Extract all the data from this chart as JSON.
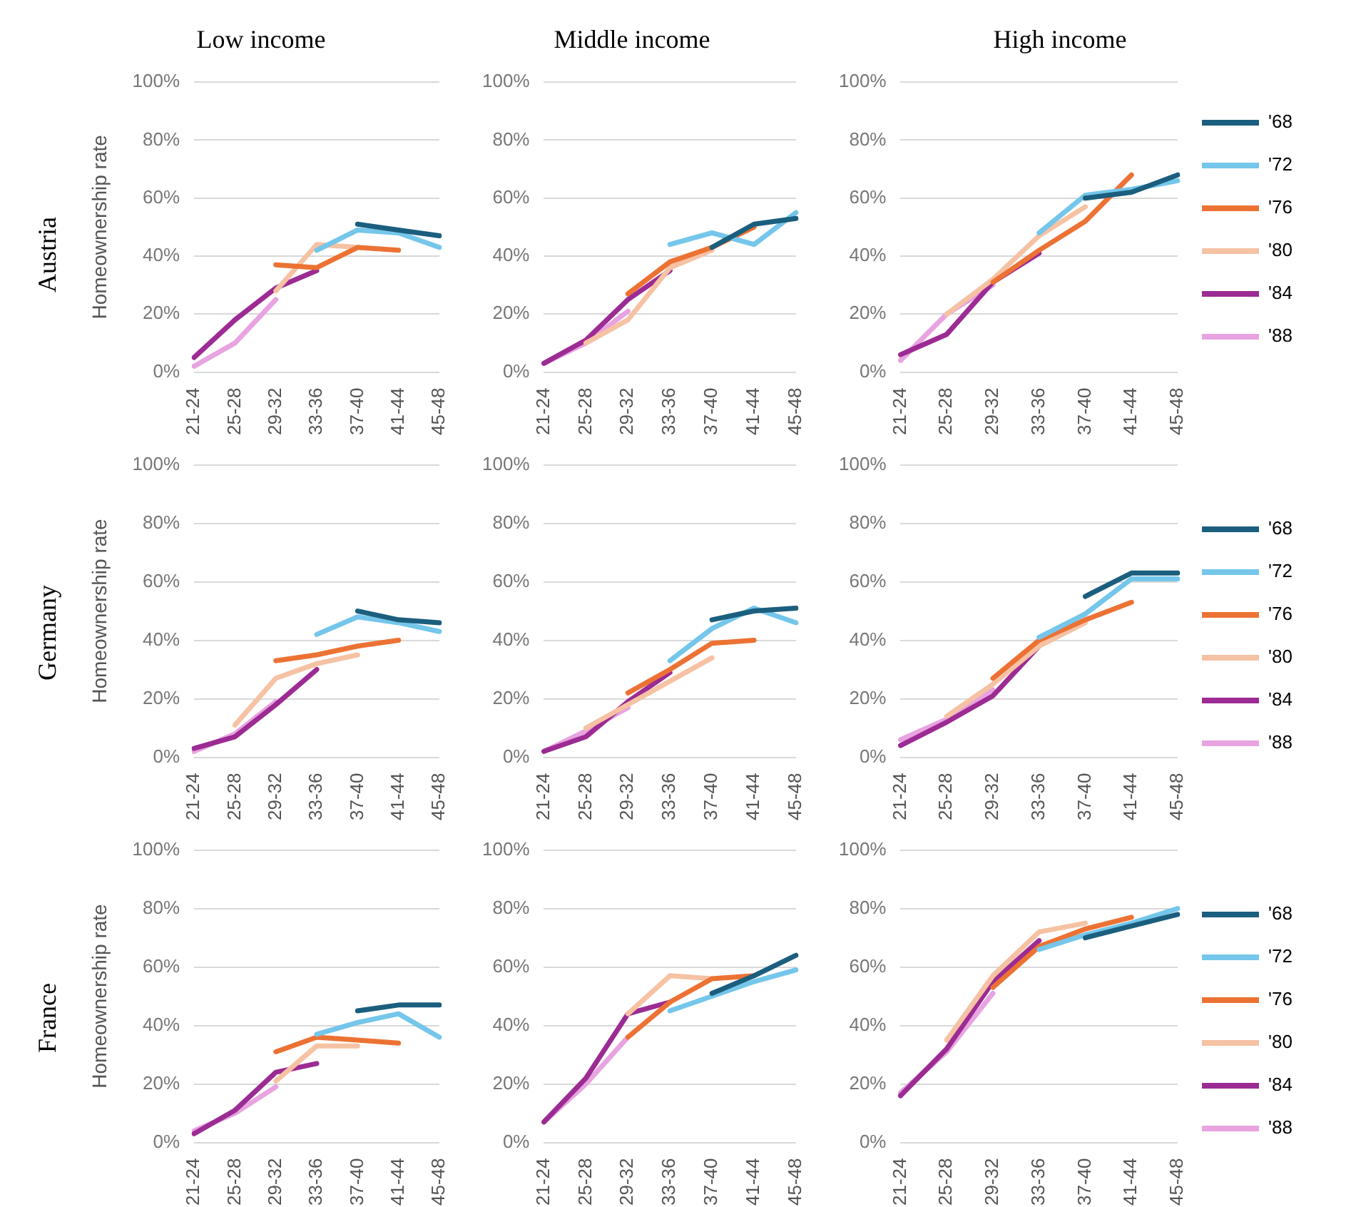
{
  "chart_data": [
    {
      "type": "line",
      "title": "Low income",
      "ylabel": "Homeownership rate",
      "annotations": [
        "Austria"
      ],
      "categories": [
        "21-24",
        "25-28",
        "29-32",
        "33-36",
        "37-40",
        "41-44",
        "45-48"
      ],
      "ylim": [
        0,
        100
      ],
      "yticks": [
        {
          "value": 0,
          "label": "0%"
        },
        {
          "value": 20,
          "label": "20%"
        },
        {
          "value": 40,
          "label": "40%"
        },
        {
          "value": 60,
          "label": "60%"
        },
        {
          "value": 80,
          "label": "80%"
        },
        {
          "value": 100,
          "label": "100%"
        }
      ],
      "grid": "y",
      "legend": false,
      "marker": "none",
      "line_style": "solid",
      "series": [
        {
          "color": "#1b5e7e",
          "values": [
            null,
            null,
            null,
            null,
            51,
            49,
            47
          ]
        },
        {
          "color": "#74c6ea",
          "values": [
            null,
            null,
            null,
            42,
            49,
            48,
            43
          ]
        },
        {
          "color": "#ec7234",
          "values": [
            null,
            null,
            37,
            36,
            43,
            42,
            null
          ]
        },
        {
          "color": "#f6c2a4",
          "values": [
            null,
            null,
            28,
            44,
            43,
            null,
            null
          ]
        },
        {
          "color": "#9c2b93",
          "values": [
            5,
            18,
            29,
            35,
            null,
            null,
            null
          ]
        },
        {
          "color": "#e8a3e0",
          "values": [
            2,
            10,
            25,
            null,
            null,
            null,
            null
          ]
        }
      ]
    },
    {
      "type": "line",
      "title": "Middle income",
      "categories": [
        "21-24",
        "25-28",
        "29-32",
        "33-36",
        "37-40",
        "41-44",
        "45-48"
      ],
      "ylim": [
        0,
        100
      ],
      "yticks": [
        {
          "value": 0,
          "label": "0%"
        },
        {
          "value": 20,
          "label": "20%"
        },
        {
          "value": 40,
          "label": "40%"
        },
        {
          "value": 60,
          "label": "60%"
        },
        {
          "value": 80,
          "label": "80%"
        },
        {
          "value": 100,
          "label": "100%"
        }
      ],
      "grid": "y",
      "legend": false,
      "marker": "none",
      "line_style": "solid",
      "series": [
        {
          "color": "#1b5e7e",
          "values": [
            null,
            null,
            null,
            null,
            43,
            51,
            53
          ]
        },
        {
          "color": "#74c6ea",
          "values": [
            null,
            null,
            null,
            44,
            48,
            44,
            55
          ]
        },
        {
          "color": "#ec7234",
          "values": [
            null,
            null,
            27,
            38,
            43,
            50,
            null
          ]
        },
        {
          "color": "#f6c2a4",
          "values": [
            null,
            10,
            18,
            36,
            42,
            null,
            null
          ]
        },
        {
          "color": "#9c2b93",
          "values": [
            3,
            11,
            25,
            35,
            null,
            null,
            null
          ]
        },
        {
          "color": "#e8a3e0",
          "values": [
            3,
            10,
            21,
            null,
            null,
            null,
            null
          ]
        }
      ]
    },
    {
      "type": "line",
      "title": "High income",
      "categories": [
        "21-24",
        "25-28",
        "29-32",
        "33-36",
        "37-40",
        "41-44",
        "45-48"
      ],
      "ylim": [
        0,
        100
      ],
      "yticks": [
        {
          "value": 0,
          "label": "0%"
        },
        {
          "value": 20,
          "label": "20%"
        },
        {
          "value": 40,
          "label": "40%"
        },
        {
          "value": 60,
          "label": "60%"
        },
        {
          "value": 80,
          "label": "80%"
        },
        {
          "value": 100,
          "label": "100%"
        }
      ],
      "grid": "y",
      "legend": "right",
      "marker": "none",
      "line_style": "solid",
      "series": [
        {
          "name": "'68",
          "color": "#1b5e7e",
          "values": [
            null,
            null,
            null,
            null,
            60,
            62,
            68
          ]
        },
        {
          "name": "'72",
          "color": "#74c6ea",
          "values": [
            null,
            null,
            null,
            48,
            61,
            63,
            66
          ]
        },
        {
          "name": "'76",
          "color": "#ec7234",
          "values": [
            null,
            null,
            31,
            42,
            52,
            68,
            null
          ]
        },
        {
          "name": "'80",
          "color": "#f6c2a4",
          "values": [
            null,
            20,
            32,
            47,
            57,
            null,
            null
          ]
        },
        {
          "name": "'84",
          "color": "#9c2b93",
          "values": [
            6,
            13,
            31,
            41,
            null,
            null,
            null
          ]
        },
        {
          "name": "'88",
          "color": "#e8a3e0",
          "values": [
            4,
            20,
            30,
            null,
            null,
            null,
            null
          ]
        }
      ]
    },
    {
      "type": "line",
      "ylabel": "Homeownership rate",
      "annotations": [
        "Germany"
      ],
      "categories": [
        "21-24",
        "25-28",
        "29-32",
        "33-36",
        "37-40",
        "41-44",
        "45-48"
      ],
      "ylim": [
        0,
        100
      ],
      "yticks": [
        {
          "value": 0,
          "label": "0%"
        },
        {
          "value": 20,
          "label": "20%"
        },
        {
          "value": 40,
          "label": "40%"
        },
        {
          "value": 60,
          "label": "60%"
        },
        {
          "value": 80,
          "label": "80%"
        },
        {
          "value": 100,
          "label": "100%"
        }
      ],
      "grid": "y",
      "legend": false,
      "marker": "none",
      "line_style": "solid",
      "series": [
        {
          "color": "#1b5e7e",
          "values": [
            null,
            null,
            null,
            null,
            50,
            47,
            46
          ]
        },
        {
          "color": "#74c6ea",
          "values": [
            null,
            null,
            null,
            42,
            48,
            46,
            43
          ]
        },
        {
          "color": "#ec7234",
          "values": [
            null,
            null,
            33,
            35,
            38,
            40,
            null
          ]
        },
        {
          "color": "#f6c2a4",
          "values": [
            null,
            11,
            27,
            32,
            35,
            null,
            null
          ]
        },
        {
          "color": "#9c2b93",
          "values": [
            3,
            7,
            18,
            30,
            null,
            null,
            null
          ]
        },
        {
          "color": "#e8a3e0",
          "values": [
            2,
            8,
            19,
            null,
            null,
            null,
            null
          ]
        }
      ]
    },
    {
      "type": "line",
      "categories": [
        "21-24",
        "25-28",
        "29-32",
        "33-36",
        "37-40",
        "41-44",
        "45-48"
      ],
      "ylim": [
        0,
        100
      ],
      "yticks": [
        {
          "value": 0,
          "label": "0%"
        },
        {
          "value": 20,
          "label": "20%"
        },
        {
          "value": 40,
          "label": "40%"
        },
        {
          "value": 60,
          "label": "60%"
        },
        {
          "value": 80,
          "label": "80%"
        },
        {
          "value": 100,
          "label": "100%"
        }
      ],
      "grid": "y",
      "legend": false,
      "marker": "none",
      "line_style": "solid",
      "series": [
        {
          "color": "#1b5e7e",
          "values": [
            null,
            null,
            null,
            null,
            47,
            50,
            51
          ]
        },
        {
          "color": "#74c6ea",
          "values": [
            null,
            null,
            null,
            33,
            44,
            51,
            46
          ]
        },
        {
          "color": "#ec7234",
          "values": [
            null,
            null,
            22,
            30,
            39,
            40,
            null
          ]
        },
        {
          "color": "#f6c2a4",
          "values": [
            null,
            10,
            18,
            26,
            34,
            null,
            null
          ]
        },
        {
          "color": "#9c2b93",
          "values": [
            2,
            7,
            19,
            29,
            null,
            null,
            null
          ]
        },
        {
          "color": "#e8a3e0",
          "values": [
            2,
            9,
            17,
            null,
            null,
            null,
            null
          ]
        }
      ]
    },
    {
      "type": "line",
      "categories": [
        "21-24",
        "25-28",
        "29-32",
        "33-36",
        "37-40",
        "41-44",
        "45-48"
      ],
      "ylim": [
        0,
        100
      ],
      "yticks": [
        {
          "value": 0,
          "label": "0%"
        },
        {
          "value": 20,
          "label": "20%"
        },
        {
          "value": 40,
          "label": "40%"
        },
        {
          "value": 60,
          "label": "60%"
        },
        {
          "value": 80,
          "label": "80%"
        },
        {
          "value": 100,
          "label": "100%"
        }
      ],
      "grid": "y",
      "legend": "right",
      "marker": "none",
      "line_style": "solid",
      "series": [
        {
          "name": "'68",
          "color": "#1b5e7e",
          "values": [
            null,
            null,
            null,
            null,
            55,
            63,
            63
          ]
        },
        {
          "name": "'72",
          "color": "#74c6ea",
          "values": [
            null,
            null,
            null,
            41,
            49,
            61,
            61
          ]
        },
        {
          "name": "'76",
          "color": "#ec7234",
          "values": [
            null,
            null,
            27,
            40,
            47,
            53,
            null
          ]
        },
        {
          "name": "'80",
          "color": "#f6c2a4",
          "values": [
            null,
            14,
            25,
            38,
            46,
            null,
            null
          ]
        },
        {
          "name": "'84",
          "color": "#9c2b93",
          "values": [
            4,
            12,
            21,
            38,
            null,
            null,
            null
          ]
        },
        {
          "name": "'88",
          "color": "#e8a3e0",
          "values": [
            6,
            13,
            23,
            null,
            null,
            null,
            null
          ]
        }
      ]
    },
    {
      "type": "line",
      "ylabel": "Homeownership rate",
      "annotations": [
        "France"
      ],
      "categories": [
        "21-24",
        "25-28",
        "29-32",
        "33-36",
        "37-40",
        "41-44",
        "45-48"
      ],
      "ylim": [
        0,
        100
      ],
      "yticks": [
        {
          "value": 0,
          "label": "0%"
        },
        {
          "value": 20,
          "label": "20%"
        },
        {
          "value": 40,
          "label": "40%"
        },
        {
          "value": 60,
          "label": "60%"
        },
        {
          "value": 80,
          "label": "80%"
        },
        {
          "value": 100,
          "label": "100%"
        }
      ],
      "grid": "y",
      "legend": false,
      "marker": "none",
      "line_style": "solid",
      "series": [
        {
          "color": "#1b5e7e",
          "values": [
            null,
            null,
            null,
            null,
            45,
            47,
            47
          ]
        },
        {
          "color": "#74c6ea",
          "values": [
            null,
            null,
            null,
            37,
            41,
            44,
            36
          ]
        },
        {
          "color": "#ec7234",
          "values": [
            null,
            null,
            31,
            36,
            35,
            34,
            null
          ]
        },
        {
          "color": "#f6c2a4",
          "values": [
            null,
            null,
            21,
            33,
            33,
            null,
            null
          ]
        },
        {
          "color": "#9c2b93",
          "values": [
            3,
            11,
            24,
            27,
            null,
            null,
            null
          ]
        },
        {
          "color": "#e8a3e0",
          "values": [
            4,
            10,
            19,
            null,
            null,
            null,
            null
          ]
        }
      ]
    },
    {
      "type": "line",
      "categories": [
        "21-24",
        "25-28",
        "29-32",
        "33-36",
        "37-40",
        "41-44",
        "45-48"
      ],
      "ylim": [
        0,
        100
      ],
      "yticks": [
        {
          "value": 0,
          "label": "0%"
        },
        {
          "value": 20,
          "label": "20%"
        },
        {
          "value": 40,
          "label": "40%"
        },
        {
          "value": 60,
          "label": "60%"
        },
        {
          "value": 80,
          "label": "80%"
        },
        {
          "value": 100,
          "label": "100%"
        }
      ],
      "grid": "y",
      "legend": false,
      "marker": "none",
      "line_style": "solid",
      "series": [
        {
          "color": "#1b5e7e",
          "values": [
            null,
            null,
            null,
            null,
            51,
            57,
            64
          ]
        },
        {
          "color": "#74c6ea",
          "values": [
            null,
            null,
            null,
            45,
            50,
            55,
            59
          ]
        },
        {
          "color": "#ec7234",
          "values": [
            null,
            null,
            36,
            48,
            56,
            57,
            null
          ]
        },
        {
          "color": "#f6c2a4",
          "values": [
            null,
            null,
            44,
            57,
            56,
            null,
            null
          ]
        },
        {
          "color": "#9c2b93",
          "values": [
            7,
            22,
            44,
            48,
            null,
            null,
            null
          ]
        },
        {
          "color": "#e8a3e0",
          "values": [
            7,
            20,
            36,
            null,
            null,
            null,
            null
          ]
        }
      ]
    },
    {
      "type": "line",
      "categories": [
        "21-24",
        "25-28",
        "29-32",
        "33-36",
        "37-40",
        "41-44",
        "45-48"
      ],
      "ylim": [
        0,
        100
      ],
      "yticks": [
        {
          "value": 0,
          "label": "0%"
        },
        {
          "value": 20,
          "label": "20%"
        },
        {
          "value": 40,
          "label": "40%"
        },
        {
          "value": 60,
          "label": "60%"
        },
        {
          "value": 80,
          "label": "80%"
        },
        {
          "value": 100,
          "label": "100%"
        }
      ],
      "grid": "y",
      "legend": "right",
      "marker": "none",
      "line_style": "solid",
      "series": [
        {
          "name": "'68",
          "color": "#1b5e7e",
          "values": [
            null,
            null,
            null,
            null,
            70,
            74,
            78
          ]
        },
        {
          "name": "'72",
          "color": "#74c6ea",
          "values": [
            null,
            null,
            null,
            66,
            71,
            75,
            80
          ]
        },
        {
          "name": "'76",
          "color": "#ec7234",
          "values": [
            null,
            null,
            53,
            67,
            73,
            77,
            null
          ]
        },
        {
          "name": "'80",
          "color": "#f6c2a4",
          "values": [
            null,
            35,
            57,
            72,
            75,
            null,
            null
          ]
        },
        {
          "name": "'84",
          "color": "#9c2b93",
          "values": [
            16,
            32,
            55,
            69,
            null,
            null,
            null
          ]
        },
        {
          "name": "'88",
          "color": "#e8a3e0",
          "values": [
            17,
            31,
            51,
            null,
            null,
            null,
            null
          ]
        }
      ]
    }
  ]
}
